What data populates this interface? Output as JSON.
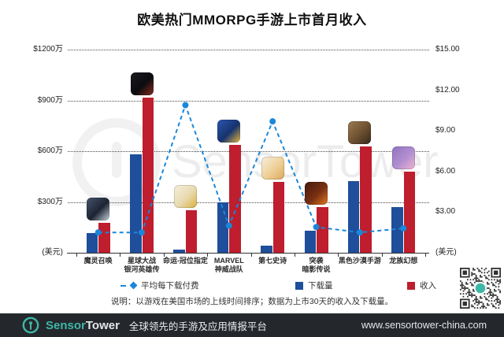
{
  "title": "欧美热门MMORPG手游上市首月收入",
  "chart_data": {
    "type": "bar",
    "combo": "grouped bars on left axis + dashed line with circle markers on right axis",
    "title": "欧美热门MMORPG手游上市首月收入",
    "categories": [
      "魔灵召唤",
      "星球大战\n银河英雄传",
      "命运-冠位指定",
      "MARVEL\n神威战队",
      "第七史诗",
      "突袭\n暗影传说",
      "黑色沙漠手游",
      "龙族幻想"
    ],
    "series": [
      {
        "name": "下载量",
        "type": "bar",
        "axis": "left",
        "color": "#1f4e9b",
        "unit": "万",
        "values": [
          115,
          580,
          20,
          300,
          40,
          130,
          425,
          270
        ]
      },
      {
        "name": "收入",
        "type": "bar",
        "axis": "left",
        "color": "#be1e2d",
        "unit": "万美元",
        "values": [
          175,
          915,
          250,
          635,
          420,
          270,
          630,
          480
        ]
      },
      {
        "name": "平均每下载付费",
        "type": "line",
        "axis": "right",
        "color": "#1b87d9",
        "unit": "美元",
        "values": [
          1.5,
          1.5,
          10.9,
          2.0,
          9.7,
          1.9,
          1.5,
          1.8
        ]
      }
    ],
    "left_axis": {
      "unit": "(美元)",
      "ticks": [
        "$1200万",
        "$900万",
        "$600万",
        "$300万"
      ],
      "tick_values": [
        1200,
        900,
        600,
        300
      ],
      "min": 0,
      "max": 1200
    },
    "right_axis": {
      "unit": "(美元)",
      "ticks": [
        "$15.00",
        "$12.00",
        "$9.00",
        "$6.00",
        "$3.00"
      ],
      "tick_values": [
        15,
        12,
        9,
        6,
        3
      ],
      "min": 0,
      "max": 15
    },
    "grid": "dotted horizontal lines at left-axis ticks",
    "legend_position": "bottom"
  },
  "legend": {
    "arpd": "平均每下载付费",
    "downloads": "下载量",
    "revenue": "收入"
  },
  "note": "说明：以游戏在美国市场的上线时间排序；数据为上市30天的收入及下载量。",
  "watermark": "SensorTower",
  "icons": [
    {
      "name": "summoners-war-icon",
      "colors": [
        "#44536e",
        "#1d2433",
        "#c9d3de"
      ]
    },
    {
      "name": "star-wars-galaxy-of-heroes-icon",
      "colors": [
        "#1a1b20",
        "#0c0c0f",
        "#8a2b22"
      ]
    },
    {
      "name": "fate-grand-order-icon",
      "colors": [
        "#f6efdc",
        "#e8d9ae",
        "#d9b13e"
      ]
    },
    {
      "name": "marvel-strike-force-icon",
      "colors": [
        "#2c55b0",
        "#16336e",
        "#e8b63e"
      ]
    },
    {
      "name": "epic-seven-icon",
      "colors": [
        "#f7efe0",
        "#eecf96",
        "#d9a75c"
      ]
    },
    {
      "name": "raid-shadow-legends-icon",
      "colors": [
        "#42180d",
        "#7a2f12",
        "#e07a22"
      ]
    },
    {
      "name": "black-desert-mobile-icon",
      "colors": [
        "#9c7c50",
        "#6b4f30",
        "#35271a"
      ]
    },
    {
      "name": "dragon-raja-icon",
      "colors": [
        "#8f74c0",
        "#b38fd0",
        "#f0b7d2"
      ]
    }
  ],
  "footer": {
    "brand_sensor": "Sensor",
    "brand_tower": "Tower",
    "tagline": "全球领先的手游及应用情报平台",
    "url": "www.sensortower-china.com"
  },
  "colors": {
    "bar_downloads": "#1f4e9b",
    "bar_revenue": "#be1e2d",
    "line_arpd": "#1b87d9",
    "grid": "#4a4a4a",
    "footer_bg": "#24282c",
    "brand_teal": "#3eb7a7",
    "qr_dark": "#303030"
  }
}
